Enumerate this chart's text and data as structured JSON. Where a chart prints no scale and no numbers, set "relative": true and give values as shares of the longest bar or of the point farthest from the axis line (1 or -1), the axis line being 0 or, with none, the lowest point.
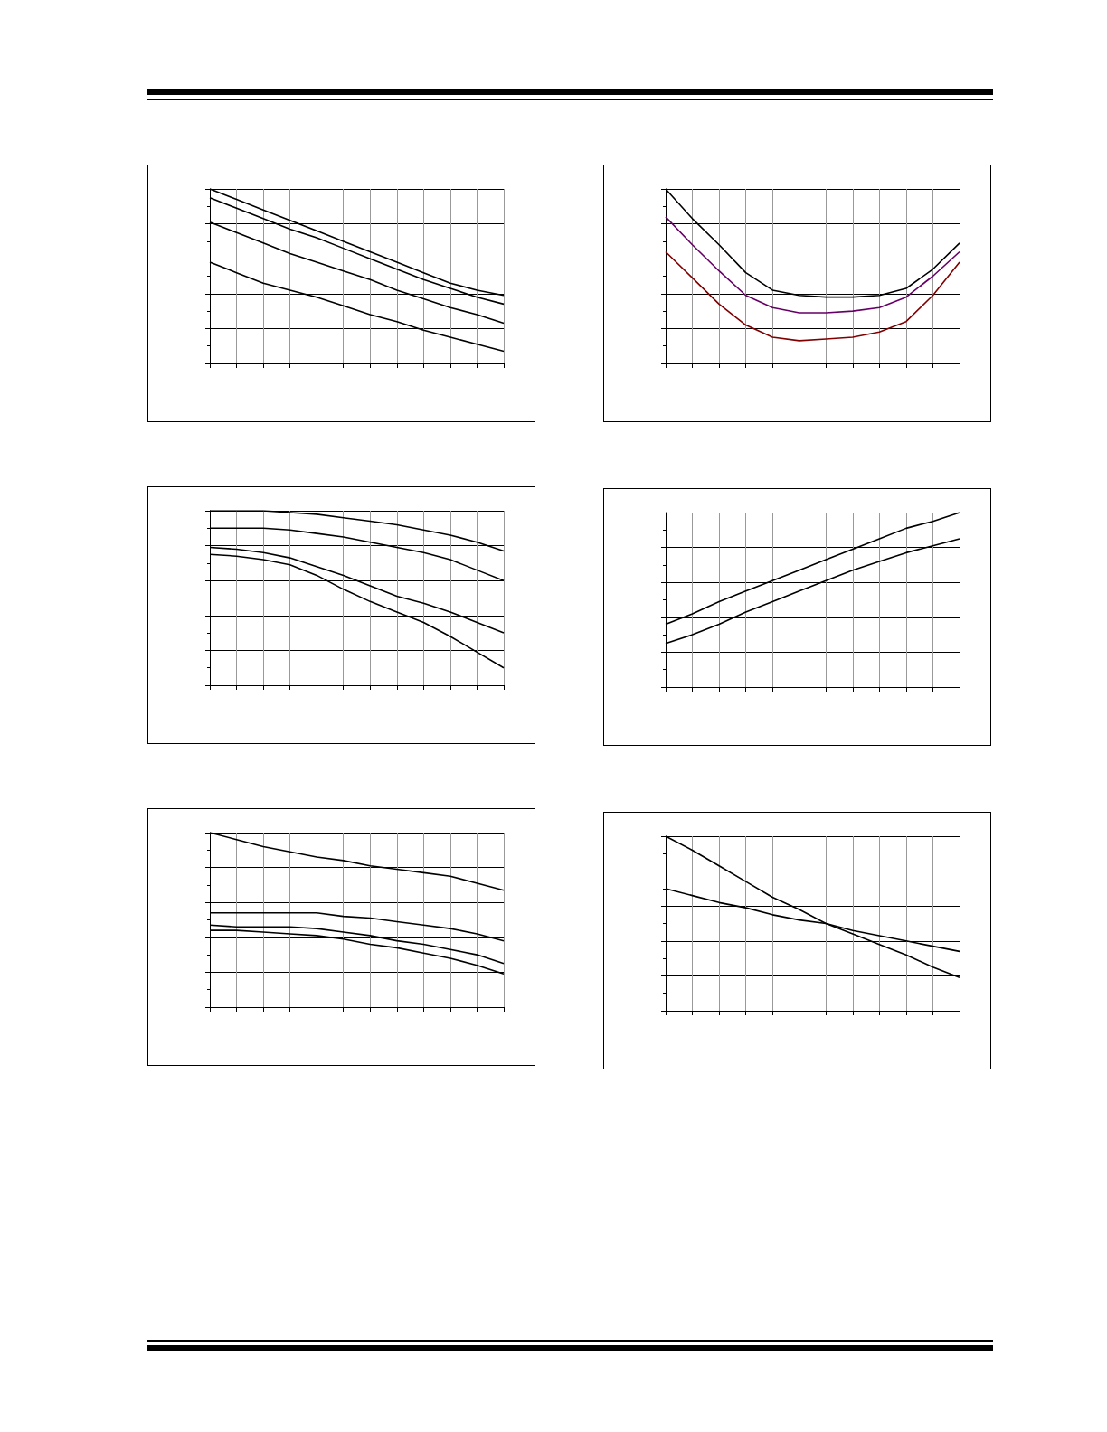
{
  "chart_data": [
    {
      "type": "line",
      "relative": true,
      "grid": true,
      "marker": "none",
      "categories": [
        null,
        null,
        null,
        null,
        null,
        null,
        null,
        null,
        null,
        null,
        null,
        null
      ],
      "series": [
        {
          "color": "#000000",
          "values": [
            1,
            0.94,
            0.88,
            0.82,
            0.76,
            0.7,
            0.64,
            0.58,
            0.52,
            0.46,
            0.42,
            0.39
          ]
        },
        {
          "color": "#000000",
          "values": [
            0.95,
            0.89,
            0.83,
            0.77,
            0.72,
            0.66,
            0.6,
            0.54,
            0.48,
            0.43,
            0.38,
            0.34
          ]
        },
        {
          "color": "#000000",
          "values": [
            0.81,
            0.75,
            0.69,
            0.63,
            0.58,
            0.53,
            0.48,
            0.42,
            0.37,
            0.32,
            0.28,
            0.23
          ]
        },
        {
          "color": "#000000",
          "values": [
            0.58,
            0.52,
            0.46,
            0.42,
            0.38,
            0.33,
            0.28,
            0.24,
            0.19,
            0.15,
            0.11,
            0.07
          ]
        }
      ]
    },
    {
      "type": "line",
      "relative": true,
      "grid": true,
      "marker": "none",
      "categories": [
        null,
        null,
        null,
        null,
        null,
        null,
        null,
        null,
        null,
        null,
        null,
        null
      ],
      "series": [
        {
          "color": "#000000",
          "values": [
            1,
            0.83,
            0.68,
            0.52,
            0.42,
            0.39,
            0.38,
            0.38,
            0.39,
            0.43,
            0.54,
            0.69
          ]
        },
        {
          "color": "#660066",
          "values": [
            0.84,
            0.68,
            0.53,
            0.39,
            0.32,
            0.29,
            0.29,
            0.3,
            0.32,
            0.38,
            0.5,
            0.64
          ]
        },
        {
          "color": "#800000",
          "values": [
            0.64,
            0.49,
            0.34,
            0.22,
            0.15,
            0.13,
            0.14,
            0.15,
            0.18,
            0.24,
            0.39,
            0.58
          ]
        }
      ]
    },
    {
      "type": "line",
      "relative": true,
      "grid": true,
      "marker": "none",
      "categories": [
        null,
        null,
        null,
        null,
        null,
        null,
        null,
        null,
        null,
        null,
        null,
        null
      ],
      "series": [
        {
          "color": "#000000",
          "values": [
            1,
            1,
            1,
            0.99,
            0.98,
            0.96,
            0.94,
            0.92,
            0.89,
            0.86,
            0.82,
            0.77
          ]
        },
        {
          "color": "#000000",
          "values": [
            0.9,
            0.9,
            0.9,
            0.89,
            0.87,
            0.85,
            0.82,
            0.79,
            0.76,
            0.72,
            0.66,
            0.6
          ]
        },
        {
          "color": "#000000",
          "values": [
            0.79,
            0.78,
            0.76,
            0.73,
            0.68,
            0.63,
            0.57,
            0.51,
            0.47,
            0.42,
            0.36,
            0.3
          ]
        },
        {
          "color": "#000000",
          "values": [
            0.75,
            0.74,
            0.72,
            0.69,
            0.63,
            0.55,
            0.48,
            0.42,
            0.36,
            0.28,
            0.19,
            0.1
          ]
        }
      ]
    },
    {
      "type": "line",
      "relative": true,
      "grid": true,
      "marker": "none",
      "categories": [
        null,
        null,
        null,
        null,
        null,
        null,
        null,
        null,
        null,
        null,
        null,
        null
      ],
      "series": [
        {
          "color": "#000000",
          "values": [
            0.36,
            0.42,
            0.49,
            0.55,
            0.61,
            0.67,
            0.73,
            0.79,
            0.85,
            0.91,
            0.95,
            1
          ]
        },
        {
          "color": "#000000",
          "values": [
            0.25,
            0.3,
            0.36,
            0.43,
            0.49,
            0.55,
            0.61,
            0.67,
            0.72,
            0.77,
            0.81,
            0.85
          ]
        }
      ]
    },
    {
      "type": "line",
      "relative": true,
      "grid": true,
      "marker": "none",
      "categories": [
        null,
        null,
        null,
        null,
        null,
        null,
        null,
        null,
        null,
        null,
        null,
        null
      ],
      "series": [
        {
          "color": "#000000",
          "values": [
            1,
            0.96,
            0.92,
            0.89,
            0.86,
            0.84,
            0.81,
            0.79,
            0.77,
            0.75,
            0.71,
            0.67
          ]
        },
        {
          "color": "#000000",
          "values": [
            0.54,
            0.54,
            0.54,
            0.54,
            0.54,
            0.52,
            0.51,
            0.49,
            0.47,
            0.45,
            0.42,
            0.38
          ]
        },
        {
          "color": "#000000",
          "values": [
            0.47,
            0.46,
            0.46,
            0.46,
            0.45,
            0.43,
            0.41,
            0.38,
            0.36,
            0.33,
            0.3,
            0.25
          ]
        },
        {
          "color": "#000000",
          "values": [
            0.44,
            0.44,
            0.43,
            0.42,
            0.41,
            0.39,
            0.36,
            0.34,
            0.31,
            0.28,
            0.24,
            0.19
          ]
        }
      ]
    },
    {
      "type": "line",
      "relative": true,
      "grid": true,
      "marker": "none",
      "categories": [
        null,
        null,
        null,
        null,
        null,
        null,
        null,
        null,
        null,
        null,
        null,
        null
      ],
      "series": [
        {
          "color": "#000000",
          "values": [
            1,
            0.92,
            0.83,
            0.74,
            0.65,
            0.58,
            0.5,
            0.44,
            0.38,
            0.32,
            0.25,
            0.19
          ]
        },
        {
          "color": "#000000",
          "values": [
            0.7,
            0.66,
            0.62,
            0.59,
            0.55,
            0.52,
            0.5,
            0.46,
            0.43,
            0.4,
            0.37,
            0.34
          ]
        }
      ]
    }
  ]
}
